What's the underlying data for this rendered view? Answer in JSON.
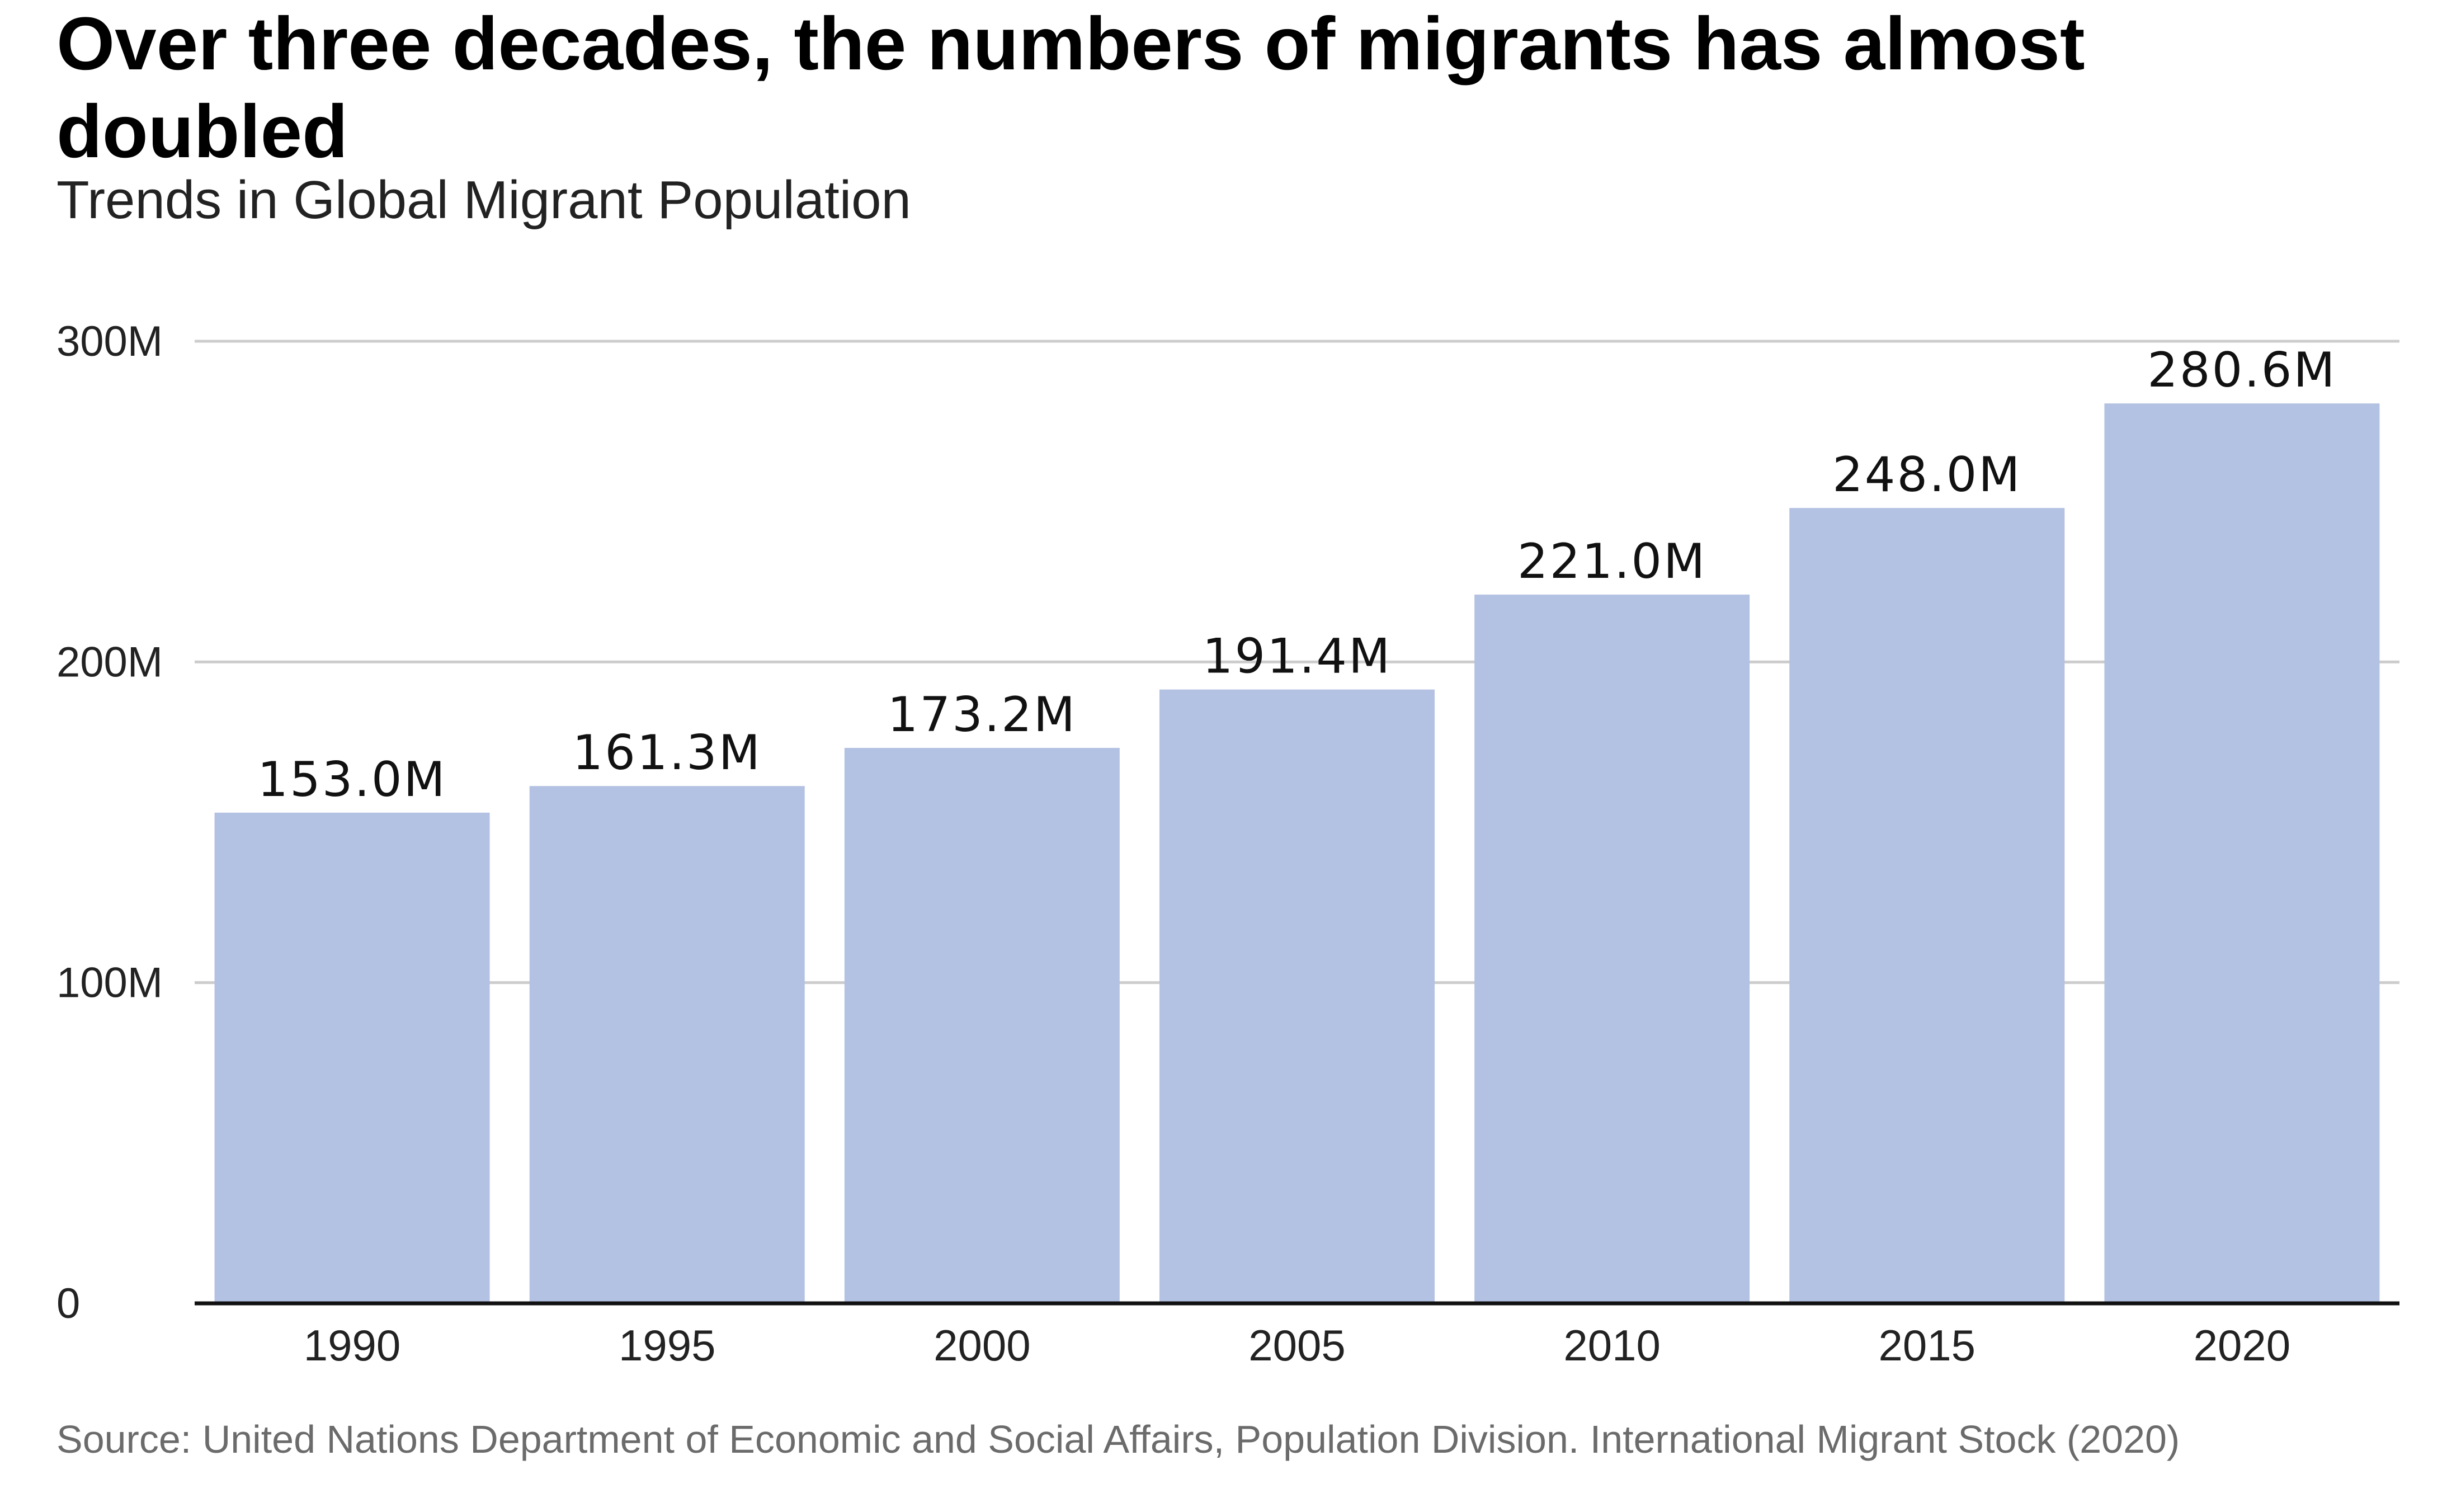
{
  "title": "Over three decades, the numbers of migrants has almost doubled",
  "subtitle": "Trends in Global Migrant Population",
  "source": "Source: United Nations Department of Economic and Social Affairs, Population Division. International Migrant Stock (2020)",
  "colors": {
    "bar": "#b3c1e2",
    "grid": "#cccccc",
    "baseline": "#111111",
    "tick_text": "#222222",
    "label_text": "#111111"
  },
  "chart_data": {
    "type": "bar",
    "title": "Over three decades, the numbers of migrants has almost doubled",
    "subtitle": "Trends in Global Migrant Population",
    "categories": [
      "1990",
      "1995",
      "2000",
      "2005",
      "2010",
      "2015",
      "2020"
    ],
    "values": [
      153.0,
      161.3,
      173.2,
      191.4,
      221.0,
      248.0,
      280.6
    ],
    "data_labels": [
      "153.0M",
      "161.3M",
      "173.2M",
      "191.4M",
      "221.0M",
      "248.0M",
      "280.6M"
    ],
    "xlabel": "",
    "ylabel": "",
    "ylim": [
      0,
      300
    ],
    "yticks": [
      0,
      100,
      200,
      300
    ],
    "ytick_labels": [
      "0",
      "100M",
      "200M",
      "300M"
    ],
    "grid": true,
    "legend": "none"
  }
}
